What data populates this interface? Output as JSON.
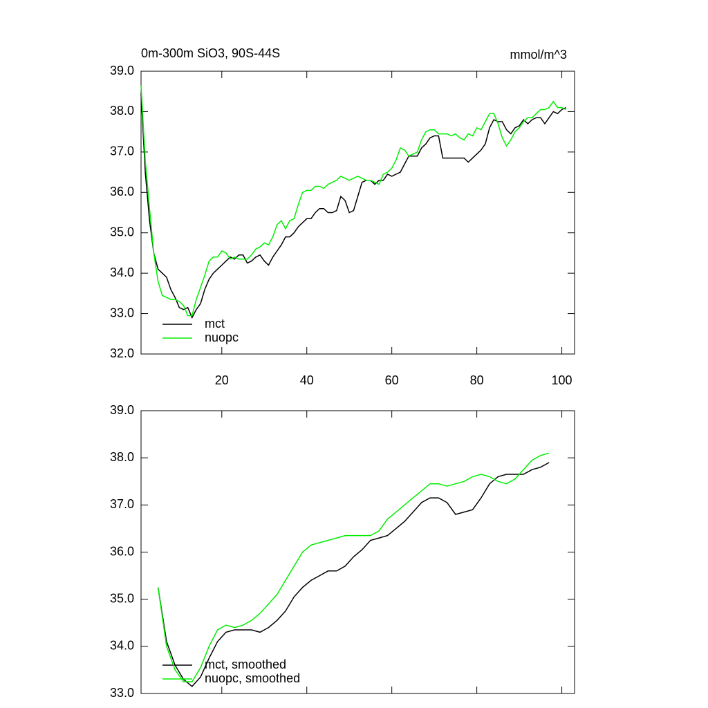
{
  "chart_data": [
    {
      "type": "line",
      "title": "0m-300m SiO3, 90S-44S",
      "units": "mmol/m^3",
      "x": [
        1,
        2,
        3,
        4,
        5,
        6,
        7,
        8,
        9,
        10,
        11,
        12,
        13,
        14,
        15,
        16,
        17,
        18,
        19,
        20,
        21,
        22,
        23,
        24,
        25,
        26,
        27,
        28,
        29,
        30,
        31,
        32,
        33,
        34,
        35,
        36,
        37,
        38,
        39,
        40,
        41,
        42,
        43,
        44,
        45,
        46,
        47,
        48,
        49,
        50,
        51,
        52,
        53,
        54,
        55,
        56,
        57,
        58,
        59,
        60,
        61,
        62,
        63,
        64,
        65,
        66,
        67,
        68,
        69,
        70,
        71,
        72,
        73,
        74,
        75,
        76,
        77,
        78,
        79,
        80,
        81,
        82,
        83,
        84,
        85,
        86,
        87,
        88,
        89,
        90,
        91,
        92,
        93,
        94,
        95,
        96,
        97,
        98,
        99,
        100,
        101
      ],
      "xlim": [
        1,
        103
      ],
      "xticks": [
        20,
        40,
        60,
        80,
        100
      ],
      "ylim": [
        32,
        39
      ],
      "yticks": [
        {
          "value": 32,
          "label": "32.0"
        },
        {
          "value": 33,
          "label": "33.0"
        },
        {
          "value": 34,
          "label": "34.0"
        },
        {
          "value": 35,
          "label": "35.0"
        },
        {
          "value": 36,
          "label": "36.0"
        },
        {
          "value": 37,
          "label": "37.0"
        },
        {
          "value": 38,
          "label": "38.0"
        },
        {
          "value": 39,
          "label": "39.0"
        }
      ],
      "series": [
        {
          "name": "mct",
          "color": "#000000",
          "values": [
            38.45,
            36.5,
            35.3,
            34.5,
            34.1,
            34.0,
            33.9,
            33.6,
            33.4,
            33.15,
            33.1,
            33.15,
            32.9,
            33.1,
            33.25,
            33.6,
            33.85,
            34.0,
            34.1,
            34.2,
            34.3,
            34.4,
            34.35,
            34.45,
            34.45,
            34.25,
            34.3,
            34.4,
            34.45,
            34.3,
            34.2,
            34.4,
            34.55,
            34.7,
            34.9,
            34.9,
            35.0,
            35.15,
            35.25,
            35.35,
            35.35,
            35.5,
            35.6,
            35.6,
            35.5,
            35.5,
            35.55,
            35.9,
            35.8,
            35.5,
            35.55,
            35.9,
            36.25,
            36.3,
            36.3,
            36.2,
            36.3,
            36.3,
            36.45,
            36.4,
            36.45,
            36.5,
            36.7,
            36.9,
            36.9,
            36.9,
            37.1,
            37.2,
            37.35,
            37.4,
            37.4,
            36.85,
            36.85,
            36.85,
            36.85,
            36.85,
            36.85,
            36.75,
            36.85,
            36.95,
            37.05,
            37.2,
            37.6,
            37.8,
            37.75,
            37.75,
            37.55,
            37.45,
            37.6,
            37.65,
            37.8,
            37.7,
            37.8,
            37.85,
            37.85,
            37.7,
            37.85,
            38.0,
            37.95,
            38.05,
            38.1
          ]
        },
        {
          "name": "nuopc",
          "color": "#00ee00",
          "values": [
            38.65,
            36.8,
            35.6,
            34.5,
            33.8,
            33.45,
            33.4,
            33.35,
            33.35,
            33.3,
            33.2,
            32.95,
            32.95,
            33.35,
            33.65,
            33.95,
            34.3,
            34.4,
            34.4,
            34.55,
            34.5,
            34.35,
            34.4,
            34.35,
            34.35,
            34.35,
            34.45,
            34.6,
            34.65,
            34.75,
            34.7,
            34.9,
            35.2,
            35.3,
            35.1,
            35.3,
            35.35,
            35.7,
            36.0,
            36.05,
            36.05,
            36.15,
            36.15,
            36.1,
            36.2,
            36.25,
            36.3,
            36.4,
            36.35,
            36.3,
            36.35,
            36.4,
            36.35,
            36.3,
            36.3,
            36.25,
            36.2,
            36.45,
            36.5,
            36.6,
            36.8,
            37.1,
            37.05,
            36.9,
            36.95,
            37.0,
            37.3,
            37.5,
            37.55,
            37.55,
            37.45,
            37.45,
            37.45,
            37.4,
            37.45,
            37.35,
            37.3,
            37.45,
            37.4,
            37.6,
            37.55,
            37.75,
            37.95,
            37.95,
            37.7,
            37.35,
            37.15,
            37.3,
            37.5,
            37.6,
            37.75,
            37.85,
            37.85,
            37.95,
            38.05,
            38.05,
            38.1,
            38.25,
            38.1,
            38.1,
            38.05
          ]
        }
      ]
    },
    {
      "type": "line",
      "x": [
        5,
        7,
        9,
        11,
        13,
        15,
        17,
        19,
        21,
        23,
        25,
        27,
        29,
        31,
        33,
        35,
        37,
        39,
        41,
        43,
        45,
        47,
        49,
        51,
        53,
        55,
        57,
        59,
        61,
        63,
        65,
        67,
        69,
        71,
        73,
        75,
        77,
        79,
        81,
        83,
        85,
        87,
        89,
        91,
        93,
        95,
        97
      ],
      "xlim": [
        1,
        103
      ],
      "xticks": [
        20,
        40,
        60,
        80,
        100
      ],
      "ylim": [
        33,
        39
      ],
      "yticks": [
        {
          "value": 33,
          "label": "33.0"
        },
        {
          "value": 34,
          "label": "34.0"
        },
        {
          "value": 35,
          "label": "35.0"
        },
        {
          "value": 36,
          "label": "36.0"
        },
        {
          "value": 37,
          "label": "37.0"
        },
        {
          "value": 38,
          "label": "38.0"
        },
        {
          "value": 39,
          "label": "39.0"
        }
      ],
      "series": [
        {
          "name": "mct, smoothed",
          "color": "#000000",
          "values": [
            35.25,
            34.1,
            33.6,
            33.3,
            33.15,
            33.35,
            33.75,
            34.1,
            34.3,
            34.35,
            34.35,
            34.35,
            34.3,
            34.4,
            34.55,
            34.75,
            35.05,
            35.25,
            35.4,
            35.5,
            35.6,
            35.6,
            35.7,
            35.9,
            36.05,
            36.25,
            36.3,
            36.35,
            36.5,
            36.65,
            36.85,
            37.05,
            37.15,
            37.15,
            37.05,
            36.8,
            36.85,
            36.9,
            37.15,
            37.45,
            37.6,
            37.65,
            37.65,
            37.65,
            37.75,
            37.8,
            37.9
          ]
        },
        {
          "name": "nuopc, smoothed",
          "color": "#00ee00",
          "values": [
            35.25,
            34.0,
            33.5,
            33.25,
            33.25,
            33.55,
            34.0,
            34.35,
            34.45,
            34.4,
            34.45,
            34.55,
            34.7,
            34.9,
            35.1,
            35.4,
            35.7,
            36.0,
            36.15,
            36.2,
            36.25,
            36.3,
            36.35,
            36.35,
            36.35,
            36.35,
            36.45,
            36.7,
            36.85,
            37.0,
            37.15,
            37.3,
            37.45,
            37.45,
            37.4,
            37.45,
            37.5,
            37.6,
            37.65,
            37.6,
            37.5,
            37.45,
            37.55,
            37.75,
            37.95,
            38.05,
            38.1
          ]
        }
      ]
    }
  ]
}
